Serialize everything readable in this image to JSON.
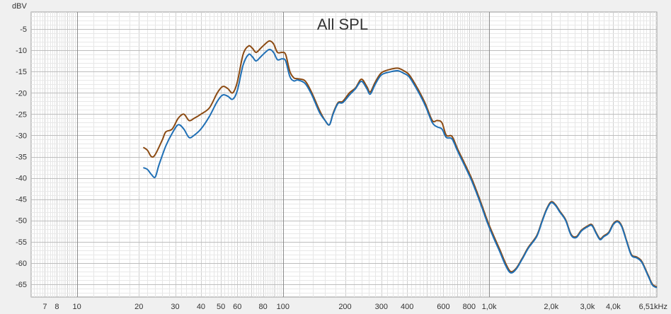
{
  "chart_data": {
    "type": "line",
    "title": "All SPL",
    "ylabel": "dBV",
    "xlabel": "",
    "x_scale": "log",
    "xlim": [
      6.0,
      6510
    ],
    "ylim": [
      -68,
      -1
    ],
    "grid": true,
    "legend": "none",
    "y_ticks": [
      -5,
      -10,
      -15,
      -20,
      -25,
      -30,
      -35,
      -40,
      -45,
      -50,
      -55,
      -60,
      -65
    ],
    "x_ticks": [
      {
        "value": 7,
        "label": "7"
      },
      {
        "value": 8,
        "label": "8"
      },
      {
        "value": 10,
        "label": "10"
      },
      {
        "value": 20,
        "label": "20"
      },
      {
        "value": 30,
        "label": "30"
      },
      {
        "value": 40,
        "label": "40"
      },
      {
        "value": 50,
        "label": "50"
      },
      {
        "value": 60,
        "label": "60"
      },
      {
        "value": 80,
        "label": "80"
      },
      {
        "value": 100,
        "label": "100"
      },
      {
        "value": 200,
        "label": "200"
      },
      {
        "value": 300,
        "label": "300"
      },
      {
        "value": 400,
        "label": "400"
      },
      {
        "value": 600,
        "label": "600"
      },
      {
        "value": 800,
        "label": "800"
      },
      {
        "value": 1000,
        "label": "1,0k"
      },
      {
        "value": 2000,
        "label": "2,0k"
      },
      {
        "value": 3000,
        "label": "3,0k"
      },
      {
        "value": 4000,
        "label": "4,0k"
      },
      {
        "value": 6510,
        "label": "6,51kHz"
      }
    ],
    "series": [
      {
        "color": "#1f6fb5",
        "points": [
          [
            21,
            -37.6
          ],
          [
            22,
            -38.0
          ],
          [
            23,
            -39.2
          ],
          [
            24,
            -39.8
          ],
          [
            25,
            -37.0
          ],
          [
            27,
            -32.5
          ],
          [
            29,
            -29.5
          ],
          [
            31,
            -27.5
          ],
          [
            33,
            -28.5
          ],
          [
            35,
            -30.5
          ],
          [
            37,
            -30.0
          ],
          [
            40,
            -28.5
          ],
          [
            44,
            -25.5
          ],
          [
            48,
            -22.0
          ],
          [
            51,
            -20.5
          ],
          [
            54,
            -20.8
          ],
          [
            57,
            -21.5
          ],
          [
            60,
            -19.5
          ],
          [
            64,
            -13.5
          ],
          [
            68,
            -11.0
          ],
          [
            71,
            -11.5
          ],
          [
            74,
            -12.5
          ],
          [
            78,
            -11.5
          ],
          [
            82,
            -10.5
          ],
          [
            86,
            -9.8
          ],
          [
            90,
            -10.5
          ],
          [
            94,
            -12.2
          ],
          [
            99,
            -12.0
          ],
          [
            103,
            -12.5
          ],
          [
            108,
            -16.2
          ],
          [
            113,
            -17.2
          ],
          [
            118,
            -17.0
          ],
          [
            128,
            -17.8
          ],
          [
            138,
            -20.5
          ],
          [
            150,
            -24.5
          ],
          [
            160,
            -26.5
          ],
          [
            168,
            -27.5
          ],
          [
            175,
            -25.0
          ],
          [
            185,
            -22.5
          ],
          [
            195,
            -22.3
          ],
          [
            210,
            -20.5
          ],
          [
            225,
            -19.0
          ],
          [
            240,
            -17.3
          ],
          [
            255,
            -19.0
          ],
          [
            265,
            -20.3
          ],
          [
            280,
            -18.0
          ],
          [
            300,
            -15.8
          ],
          [
            330,
            -15.1
          ],
          [
            360,
            -14.8
          ],
          [
            385,
            -15.4
          ],
          [
            410,
            -16.3
          ],
          [
            450,
            -19.5
          ],
          [
            490,
            -23.0
          ],
          [
            530,
            -27.0
          ],
          [
            560,
            -28.0
          ],
          [
            590,
            -28.5
          ],
          [
            620,
            -30.5
          ],
          [
            660,
            -30.8
          ],
          [
            700,
            -33.5
          ],
          [
            750,
            -36.5
          ],
          [
            820,
            -40.5
          ],
          [
            900,
            -45.5
          ],
          [
            980,
            -50.5
          ],
          [
            1050,
            -54.0
          ],
          [
            1130,
            -57.5
          ],
          [
            1200,
            -60.5
          ],
          [
            1270,
            -62.3
          ],
          [
            1350,
            -61.5
          ],
          [
            1450,
            -59.0
          ],
          [
            1550,
            -56.5
          ],
          [
            1700,
            -53.8
          ],
          [
            1800,
            -50.5
          ],
          [
            1900,
            -47.5
          ],
          [
            2000,
            -45.8
          ],
          [
            2100,
            -46.5
          ],
          [
            2200,
            -48.0
          ],
          [
            2350,
            -50.0
          ],
          [
            2500,
            -53.5
          ],
          [
            2650,
            -54.0
          ],
          [
            2800,
            -52.5
          ],
          [
            3000,
            -51.5
          ],
          [
            3150,
            -51.2
          ],
          [
            3300,
            -53.0
          ],
          [
            3450,
            -54.5
          ],
          [
            3600,
            -53.8
          ],
          [
            3800,
            -53.0
          ],
          [
            4000,
            -51.0
          ],
          [
            4200,
            -50.3
          ],
          [
            4400,
            -51.5
          ],
          [
            4650,
            -55.0
          ],
          [
            4900,
            -58.2
          ],
          [
            5200,
            -58.8
          ],
          [
            5500,
            -59.8
          ],
          [
            5900,
            -63.0
          ],
          [
            6200,
            -65.2
          ],
          [
            6510,
            -65.8
          ]
        ]
      },
      {
        "color": "#8b4a12",
        "points": [
          [
            21,
            -32.8
          ],
          [
            22,
            -33.5
          ],
          [
            23,
            -35.0
          ],
          [
            24,
            -34.5
          ],
          [
            26,
            -31.0
          ],
          [
            27,
            -29.2
          ],
          [
            29,
            -28.5
          ],
          [
            31,
            -26.0
          ],
          [
            33,
            -25.0
          ],
          [
            35,
            -26.5
          ],
          [
            37,
            -26.0
          ],
          [
            40,
            -25.0
          ],
          [
            44,
            -23.5
          ],
          [
            48,
            -20.0
          ],
          [
            51,
            -18.5
          ],
          [
            54,
            -19.0
          ],
          [
            57,
            -20.0
          ],
          [
            60,
            -17.5
          ],
          [
            64,
            -11.0
          ],
          [
            68,
            -9.0
          ],
          [
            71,
            -9.5
          ],
          [
            74,
            -10.5
          ],
          [
            78,
            -9.5
          ],
          [
            82,
            -8.5
          ],
          [
            86,
            -7.8
          ],
          [
            90,
            -8.5
          ],
          [
            94,
            -10.5
          ],
          [
            99,
            -10.5
          ],
          [
            103,
            -11.0
          ],
          [
            108,
            -15.0
          ],
          [
            113,
            -16.5
          ],
          [
            118,
            -16.7
          ],
          [
            128,
            -17.2
          ],
          [
            138,
            -20.0
          ],
          [
            150,
            -24.0
          ],
          [
            160,
            -26.5
          ],
          [
            168,
            -27.5
          ],
          [
            175,
            -24.8
          ],
          [
            185,
            -22.3
          ],
          [
            195,
            -22.0
          ],
          [
            210,
            -20.0
          ],
          [
            225,
            -18.8
          ],
          [
            240,
            -16.8
          ],
          [
            255,
            -18.5
          ],
          [
            265,
            -19.8
          ],
          [
            280,
            -17.5
          ],
          [
            300,
            -15.3
          ],
          [
            330,
            -14.5
          ],
          [
            360,
            -14.2
          ],
          [
            385,
            -14.8
          ],
          [
            410,
            -15.8
          ],
          [
            450,
            -19.0
          ],
          [
            490,
            -22.5
          ],
          [
            530,
            -26.5
          ],
          [
            560,
            -26.5
          ],
          [
            590,
            -27.0
          ],
          [
            620,
            -30.0
          ],
          [
            660,
            -30.2
          ],
          [
            700,
            -33.0
          ],
          [
            750,
            -36.0
          ],
          [
            820,
            -40.0
          ],
          [
            900,
            -45.0
          ],
          [
            980,
            -50.0
          ],
          [
            1050,
            -53.5
          ],
          [
            1130,
            -57.0
          ],
          [
            1200,
            -60.0
          ],
          [
            1270,
            -62.0
          ],
          [
            1350,
            -61.3
          ],
          [
            1450,
            -58.8
          ],
          [
            1550,
            -56.3
          ],
          [
            1700,
            -53.6
          ],
          [
            1800,
            -50.3
          ],
          [
            1900,
            -47.3
          ],
          [
            2000,
            -45.6
          ],
          [
            2100,
            -46.3
          ],
          [
            2200,
            -47.8
          ],
          [
            2350,
            -49.8
          ],
          [
            2500,
            -53.3
          ],
          [
            2650,
            -53.8
          ],
          [
            2800,
            -52.3
          ],
          [
            3000,
            -51.3
          ],
          [
            3150,
            -51.0
          ],
          [
            3300,
            -52.8
          ],
          [
            3450,
            -54.3
          ],
          [
            3600,
            -53.6
          ],
          [
            3800,
            -52.8
          ],
          [
            4000,
            -50.8
          ],
          [
            4200,
            -50.1
          ],
          [
            4400,
            -51.3
          ],
          [
            4650,
            -54.8
          ],
          [
            4900,
            -58.0
          ],
          [
            5200,
            -58.6
          ],
          [
            5500,
            -59.6
          ],
          [
            5900,
            -62.8
          ],
          [
            6200,
            -65.0
          ],
          [
            6510,
            -65.6
          ]
        ]
      }
    ]
  }
}
